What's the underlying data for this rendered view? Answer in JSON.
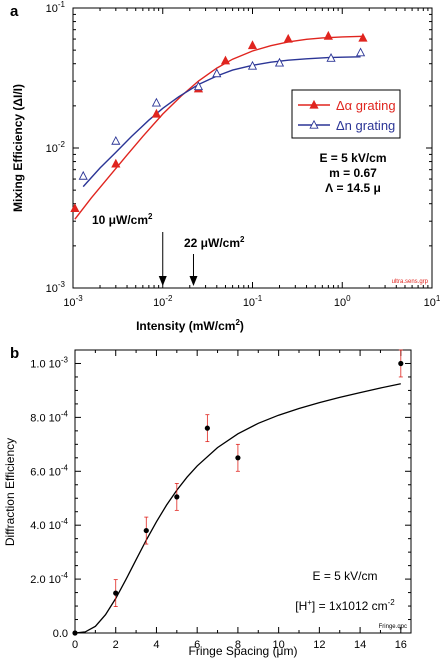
{
  "chart_data": [
    {
      "panel_label": "a",
      "type": "scatter",
      "xscale": "log",
      "yscale": "log",
      "xlim": [
        0.001,
        10
      ],
      "ylim": [
        0.001,
        0.1
      ],
      "xlabel_main": "Intensity (mW/cm",
      "xlabel_sup": "2",
      "xlabel_end": ")",
      "ylabel": "Mixing Efficiency (ΔI/I)",
      "x_ticks": [
        {
          "value": 0.001,
          "base": "10",
          "exp": "-3"
        },
        {
          "value": 0.01,
          "base": "10",
          "exp": "-2"
        },
        {
          "value": 0.1,
          "base": "10",
          "exp": "-1"
        },
        {
          "value": 1,
          "base": "10",
          "exp": "0"
        },
        {
          "value": 10,
          "base": "10",
          "exp": "1"
        }
      ],
      "y_ticks": [
        {
          "value": 0.001,
          "base": "10",
          "exp": "-3"
        },
        {
          "value": 0.01,
          "base": "10",
          "exp": "-2"
        },
        {
          "value": 0.1,
          "base": "10",
          "exp": "-1"
        }
      ],
      "series": [
        {
          "name": "Δα grating",
          "color": "#e0251f",
          "marker": "filled-triangle",
          "x": [
            0.00105,
            0.003,
            0.0085,
            0.025,
            0.05,
            0.1,
            0.25,
            0.7,
            1.7
          ],
          "y": [
            0.0037,
            0.0077,
            0.0175,
            0.0265,
            0.042,
            0.054,
            0.06,
            0.063,
            0.061
          ],
          "fit_x": [
            0.00105,
            0.0016,
            0.0025,
            0.004,
            0.006,
            0.01,
            0.016,
            0.025,
            0.04,
            0.06,
            0.1,
            0.16,
            0.25,
            0.4,
            0.6,
            1.0,
            1.7
          ],
          "fit_y": [
            0.0031,
            0.0044,
            0.0062,
            0.0089,
            0.0121,
            0.0175,
            0.0235,
            0.0301,
            0.0372,
            0.0431,
            0.0493,
            0.0538,
            0.0573,
            0.0598,
            0.0612,
            0.0622,
            0.0628
          ]
        },
        {
          "name": "Δn grating",
          "color": "#2b3596",
          "marker": "open-triangle",
          "x": [
            0.0013,
            0.003,
            0.0085,
            0.025,
            0.04,
            0.1,
            0.2,
            0.75,
            1.6
          ],
          "y": [
            0.0063,
            0.0112,
            0.021,
            0.0275,
            0.034,
            0.0385,
            0.0405,
            0.0438,
            0.048
          ],
          "fit_x": [
            0.0013,
            0.002,
            0.003,
            0.0045,
            0.007,
            0.01,
            0.015,
            0.025,
            0.04,
            0.06,
            0.1,
            0.16,
            0.25,
            0.4,
            0.7,
            1.0,
            1.6
          ],
          "fit_y": [
            0.0053,
            0.0072,
            0.0093,
            0.0121,
            0.0158,
            0.0192,
            0.0232,
            0.0284,
            0.0327,
            0.036,
            0.039,
            0.041,
            0.0424,
            0.0434,
            0.0442,
            0.0445,
            0.0448
          ]
        }
      ],
      "arrows": [
        {
          "x": 0.01,
          "label_main": "10 μW/cm",
          "label_sup": "2"
        },
        {
          "x": 0.022,
          "label_main": "22 μW/cm",
          "label_sup": "2"
        }
      ],
      "annotations": [
        "E = 5 kV/cm",
        "m = 0.67",
        "Λ = 14.5 μ"
      ],
      "file_tag": "ultra.sens.grp"
    },
    {
      "panel_label": "b",
      "type": "scatter",
      "xlim": [
        0,
        16.5
      ],
      "ylim": [
        0,
        0.00105
      ],
      "xlabel": "Fringe Spacing (μm)",
      "ylabel": "Diffraction Efficiency",
      "x_ticks": [
        "0",
        "2",
        "4",
        "6",
        "8",
        "10",
        "12",
        "14",
        "16"
      ],
      "y_ticks": [
        {
          "value": 0,
          "label": "0.0"
        },
        {
          "value": 0.0002,
          "label": "2.0 10",
          "exp": "-4"
        },
        {
          "value": 0.0004,
          "label": "4.0 10",
          "exp": "-4"
        },
        {
          "value": 0.0006,
          "label": "6.0 10",
          "exp": "-4"
        },
        {
          "value": 0.0008,
          "label": "8.0 10",
          "exp": "-4"
        },
        {
          "value": 0.001,
          "label": "1.0 10",
          "exp": "-3"
        }
      ],
      "points": {
        "x": [
          0,
          2,
          3.5,
          5,
          6.5,
          8,
          16
        ],
        "y": [
          0,
          0.000148,
          0.00038,
          0.000505,
          0.00076,
          0.00065,
          0.001
        ],
        "err": [
          0,
          5e-05,
          5e-05,
          5e-05,
          5e-05,
          5e-05,
          5e-05
        ]
      },
      "fit": {
        "x": [
          0,
          0.5,
          1,
          1.5,
          2,
          2.5,
          3,
          3.5,
          4,
          4.5,
          5,
          5.5,
          6,
          7,
          8,
          9,
          10,
          11,
          12,
          13,
          14,
          15,
          16
        ],
        "y": [
          0,
          4e-06,
          2.5e-05,
          6.8e-05,
          0.000128,
          0.000198,
          0.000272,
          0.000345,
          0.000413,
          0.000475,
          0.00053,
          0.000578,
          0.00062,
          0.000688,
          0.000739,
          0.000778,
          0.000808,
          0.000833,
          0.000855,
          0.000874,
          0.000892,
          0.000909,
          0.000925
        ]
      },
      "marker_color": "#000000",
      "error_color": "#e0251f",
      "annotations": {
        "field": "E = 5 kV/cm",
        "conc_main": "[H",
        "conc_sup1": "+",
        "conc_mid": "] = 1x1012 cm",
        "conc_sup2": "-2"
      },
      "file_tag": "Fringe.qpc"
    }
  ]
}
